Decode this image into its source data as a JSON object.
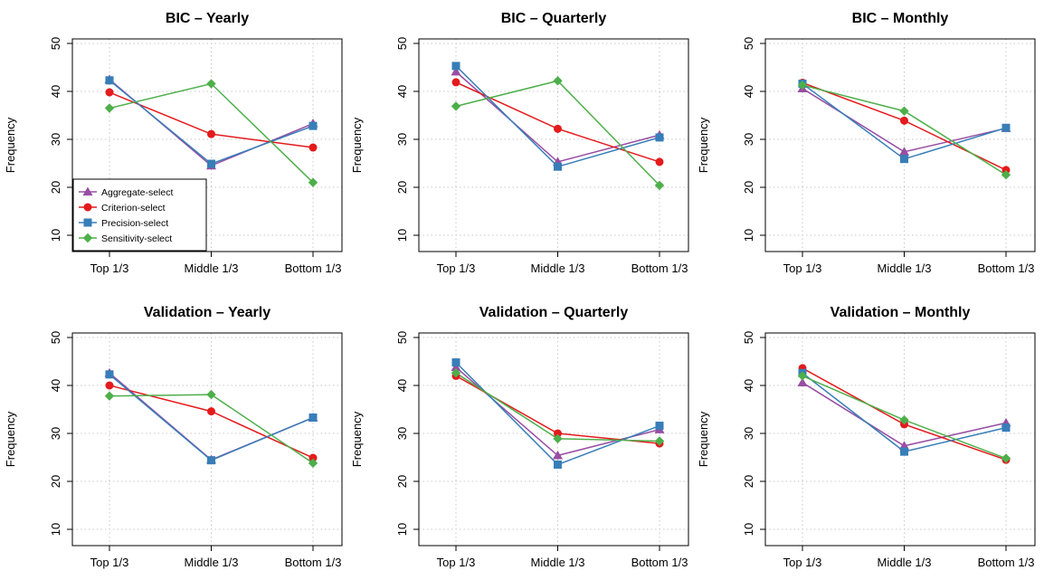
{
  "colors": {
    "Aggregate-select": "#984EA3",
    "Criterion-select": "#E41A1C",
    "Precision-select": "#377EB8",
    "Sensitivity-select": "#4DAF4A"
  },
  "legend": {
    "placement": "bottom-left of first panel",
    "entries": [
      {
        "name": "Aggregate-select",
        "marker": "triangle"
      },
      {
        "name": "Criterion-select",
        "marker": "circle"
      },
      {
        "name": "Precision-select",
        "marker": "square"
      },
      {
        "name": "Sensitivity-select",
        "marker": "diamond"
      }
    ]
  },
  "chart_data": [
    {
      "type": "line",
      "title": "BIC – Yearly",
      "xlabel": "",
      "ylabel": "Frequency",
      "categories": [
        "Top 1/3",
        "Middle 1/3",
        "Bottom 1/3"
      ],
      "ylim": [
        10,
        50
      ],
      "yticks": [
        10,
        20,
        30,
        40,
        50
      ],
      "grid": true,
      "series": [
        {
          "name": "Aggregate-select",
          "values": [
            42.5,
            24.5,
            33.3
          ]
        },
        {
          "name": "Criterion-select",
          "values": [
            39.8,
            31.1,
            28.3
          ]
        },
        {
          "name": "Precision-select",
          "values": [
            42.3,
            24.9,
            32.8
          ]
        },
        {
          "name": "Sensitivity-select",
          "values": [
            36.5,
            41.6,
            21.0
          ]
        }
      ]
    },
    {
      "type": "line",
      "title": "BIC – Quarterly",
      "xlabel": "",
      "ylabel": "Frequency",
      "categories": [
        "Top 1/3",
        "Middle 1/3",
        "Bottom 1/3"
      ],
      "ylim": [
        10,
        50
      ],
      "yticks": [
        10,
        20,
        30,
        40,
        50
      ],
      "grid": true,
      "series": [
        {
          "name": "Aggregate-select",
          "values": [
            44.1,
            25.3,
            30.9
          ]
        },
        {
          "name": "Criterion-select",
          "values": [
            41.9,
            32.2,
            25.3
          ]
        },
        {
          "name": "Precision-select",
          "values": [
            45.3,
            24.3,
            30.4
          ]
        },
        {
          "name": "Sensitivity-select",
          "values": [
            36.9,
            42.2,
            20.4
          ]
        }
      ]
    },
    {
      "type": "line",
      "title": "BIC – Monthly",
      "xlabel": "",
      "ylabel": "Frequency",
      "categories": [
        "Top 1/3",
        "Middle 1/3",
        "Bottom 1/3"
      ],
      "ylim": [
        10,
        50
      ],
      "yticks": [
        10,
        20,
        30,
        40,
        50
      ],
      "grid": true,
      "series": [
        {
          "name": "Aggregate-select",
          "values": [
            40.6,
            27.4,
            32.3
          ]
        },
        {
          "name": "Criterion-select",
          "values": [
            41.8,
            33.9,
            23.6
          ]
        },
        {
          "name": "Precision-select",
          "values": [
            41.6,
            25.9,
            32.4
          ]
        },
        {
          "name": "Sensitivity-select",
          "values": [
            41.3,
            35.9,
            22.6
          ]
        }
      ]
    },
    {
      "type": "line",
      "title": "Validation – Yearly",
      "xlabel": "",
      "ylabel": "Frequency",
      "categories": [
        "Top 1/3",
        "Middle 1/3",
        "Bottom 1/3"
      ],
      "ylim": [
        10,
        50
      ],
      "yticks": [
        10,
        20,
        30,
        40,
        50
      ],
      "grid": true,
      "series": [
        {
          "name": "Aggregate-select",
          "values": [
            42.6,
            24.5,
            33.3
          ]
        },
        {
          "name": "Criterion-select",
          "values": [
            40.0,
            34.6,
            24.9
          ]
        },
        {
          "name": "Precision-select",
          "values": [
            42.3,
            24.4,
            33.3
          ]
        },
        {
          "name": "Sensitivity-select",
          "values": [
            37.8,
            38.1,
            23.8
          ]
        }
      ]
    },
    {
      "type": "line",
      "title": "Validation – Quarterly",
      "xlabel": "",
      "ylabel": "Frequency",
      "categories": [
        "Top 1/3",
        "Middle 1/3",
        "Bottom 1/3"
      ],
      "ylim": [
        10,
        50
      ],
      "yticks": [
        10,
        20,
        30,
        40,
        50
      ],
      "grid": true,
      "series": [
        {
          "name": "Aggregate-select",
          "values": [
            43.8,
            25.4,
            30.8
          ]
        },
        {
          "name": "Criterion-select",
          "values": [
            42.0,
            30.0,
            27.9
          ]
        },
        {
          "name": "Precision-select",
          "values": [
            44.8,
            23.5,
            31.6
          ]
        },
        {
          "name": "Sensitivity-select",
          "values": [
            42.6,
            28.9,
            28.4
          ]
        }
      ]
    },
    {
      "type": "line",
      "title": "Validation – Monthly",
      "xlabel": "",
      "ylabel": "Frequency",
      "categories": [
        "Top 1/3",
        "Middle 1/3",
        "Bottom 1/3"
      ],
      "ylim": [
        10,
        50
      ],
      "yticks": [
        10,
        20,
        30,
        40,
        50
      ],
      "grid": true,
      "series": [
        {
          "name": "Aggregate-select",
          "values": [
            40.6,
            27.4,
            32.2
          ]
        },
        {
          "name": "Criterion-select",
          "values": [
            43.6,
            31.9,
            24.5
          ]
        },
        {
          "name": "Precision-select",
          "values": [
            42.6,
            26.2,
            31.2
          ]
        },
        {
          "name": "Sensitivity-select",
          "values": [
            42.0,
            32.8,
            24.8
          ]
        }
      ]
    }
  ]
}
